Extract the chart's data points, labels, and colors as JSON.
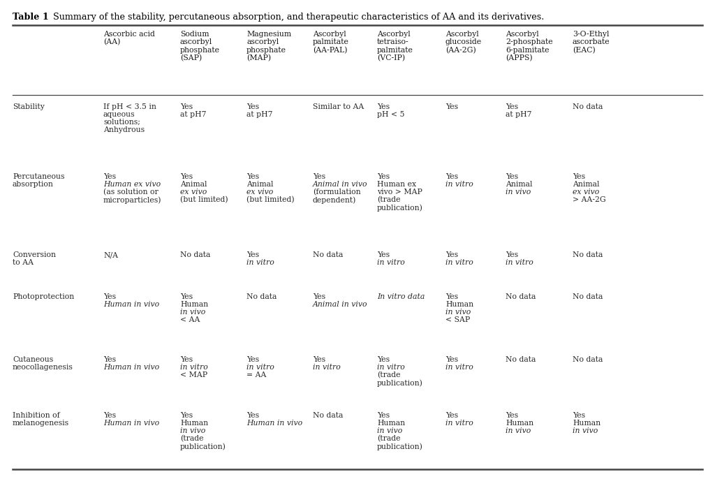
{
  "title_bold": "Table 1",
  "title_normal": " Summary of the stability, percutaneous absorption, and therapeutic characteristics of AA and its derivatives.",
  "col_headers": [
    "",
    "Ascorbic acid\n(AA)",
    "Sodium\nascorbyl\nphosphate\n(SAP)",
    "Magnesium\nascorbyl\nphosphate\n(MAP)",
    "Ascorbyl\npalmitate\n(AA-PAL)",
    "Ascorbyl\ntetraiso-\npalmitate\n(VC-IP)",
    "Ascorbyl\nglucoside\n(AA-2G)",
    "Ascorbyl\n2-phosphate\n6-palmitate\n(APPS)",
    "3-O-Ethyl\nascorbate\n(EAC)"
  ],
  "row_labels": [
    "Stability",
    "Percutaneous\nabsorption",
    "Conversion\nto AA",
    "Photoprotection",
    "Cutaneous\nneocollagenesis",
    "Inhibition of\nmelanogenesis"
  ],
  "cell_data": [
    [
      "If pH < 3.5 in\naqueous\nsolutions;\nAnhydrous",
      "Yes\nat pH7",
      "Yes\nat pH7",
      "Similar to AA",
      "Yes\npH < 5",
      "Yes",
      "Yes\nat pH7",
      "No data"
    ],
    [
      "Yes\nHuman ex vivo\n(as solution or\nmicroparticles)",
      "Yes\nAnimal\nex vivo\n(but limited)",
      "Yes\nAnimal\nex vivo\n(but limited)",
      "Yes\nAnimal in vivo\n(formulation\ndependent)",
      "Yes\nHuman ex\nvivo > MAP\n(trade\npublication)",
      "Yes\nin vitro",
      "Yes\nAnimal\nin vivo",
      "Yes\nAnimal\nex vivo\n> AA-2G"
    ],
    [
      "N/A",
      "No data",
      "Yes\nin vitro",
      "No data",
      "Yes\nin vitro",
      "Yes\nin vitro",
      "Yes\nin vitro",
      "No data"
    ],
    [
      "Yes\nHuman in vivo",
      "Yes\nHuman\nin vivo\n< AA",
      "No data",
      "Yes\nAnimal in vivo",
      "In vitro data",
      "Yes\nHuman\nin vivo\n< SAP",
      "No data",
      "No data"
    ],
    [
      "Yes\nHuman in vivo",
      "Yes\nin vitro\n< MAP",
      "Yes\nin vitro\n= AA",
      "Yes\nin vitro",
      "Yes\nin vitro\n(trade\npublication)",
      "Yes\nin vitro",
      "No data",
      "No data"
    ],
    [
      "Yes\nHuman in vivo",
      "Yes\nHuman\nin vivo\n(trade\npublication)",
      "Yes\nHuman in vivo",
      "No data",
      "Yes\nHuman\nin vivo\n(trade\npublication)",
      "Yes\nin vitro",
      "Yes\nHuman\nin vivo",
      "Yes\nHuman\nin vivo"
    ]
  ],
  "italic_phrases": [
    "ex vivo",
    "in vivo",
    "in vitro",
    "In vitro"
  ],
  "bg_color": "#ffffff",
  "text_color": "#2a2a2a",
  "header_color": "#1a1a1a",
  "line_color": "#444444",
  "font_size": 7.8,
  "header_font_size": 7.8,
  "title_font_size": 9.2,
  "fig_width": 10.24,
  "fig_height": 6.96,
  "dpi": 100
}
